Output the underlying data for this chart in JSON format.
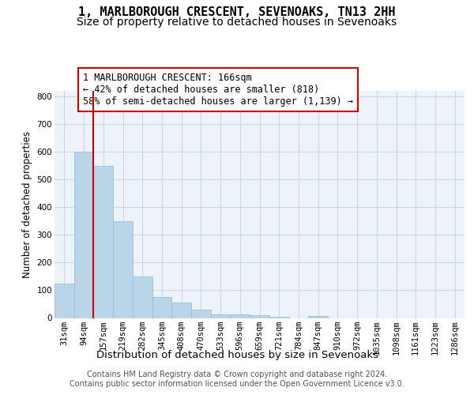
{
  "title": "1, MARLBOROUGH CRESCENT, SEVENOAKS, TN13 2HH",
  "subtitle": "Size of property relative to detached houses in Sevenoaks",
  "xlabel": "Distribution of detached houses by size in Sevenoaks",
  "ylabel": "Number of detached properties",
  "categories": [
    "31sqm",
    "94sqm",
    "157sqm",
    "219sqm",
    "282sqm",
    "345sqm",
    "408sqm",
    "470sqm",
    "533sqm",
    "596sqm",
    "659sqm",
    "721sqm",
    "784sqm",
    "847sqm",
    "910sqm",
    "972sqm",
    "1035sqm",
    "1098sqm",
    "1161sqm",
    "1223sqm",
    "1286sqm"
  ],
  "values": [
    125,
    600,
    550,
    348,
    150,
    75,
    55,
    30,
    12,
    12,
    10,
    5,
    0,
    8,
    0,
    0,
    0,
    0,
    0,
    0,
    0
  ],
  "bar_color": "#bad4e8",
  "bar_edge_color": "#90b8d8",
  "vline_color": "#cc0000",
  "annotation_text": "1 MARLBOROUGH CRESCENT: 166sqm\n← 42% of detached houses are smaller (818)\n58% of semi-detached houses are larger (1,139) →",
  "annotation_box_edge": "#cc0000",
  "ylim": [
    0,
    820
  ],
  "yticks": [
    0,
    100,
    200,
    300,
    400,
    500,
    600,
    700,
    800
  ],
  "grid_color": "#c8d8e8",
  "bg_color": "#eef3fa",
  "footer_text": "Contains HM Land Registry data © Crown copyright and database right 2024.\nContains public sector information licensed under the Open Government Licence v3.0.",
  "title_fontsize": 11,
  "subtitle_fontsize": 10,
  "xlabel_fontsize": 9.5,
  "ylabel_fontsize": 8.5,
  "tick_fontsize": 7.5,
  "annotation_fontsize": 8.5,
  "footer_fontsize": 7
}
